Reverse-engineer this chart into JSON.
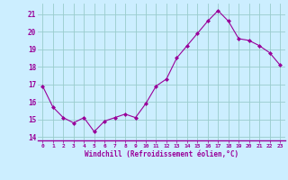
{
  "x": [
    0,
    1,
    2,
    3,
    4,
    5,
    6,
    7,
    8,
    9,
    10,
    11,
    12,
    13,
    14,
    15,
    16,
    17,
    18,
    19,
    20,
    21,
    22,
    23
  ],
  "y": [
    16.9,
    15.7,
    15.1,
    14.8,
    15.1,
    14.3,
    14.9,
    15.1,
    15.3,
    15.1,
    15.9,
    16.9,
    17.3,
    18.5,
    19.2,
    19.9,
    20.6,
    21.2,
    20.6,
    19.6,
    19.5,
    19.2,
    18.8,
    18.1
  ],
  "line_color": "#990099",
  "marker": "D",
  "marker_size": 2,
  "bg_color": "#cceeff",
  "grid_color": "#99cccc",
  "xlabel": "Windchill (Refroidissement éolien,°C)",
  "xlabel_color": "#990099",
  "tick_color": "#990099",
  "ylim": [
    13.8,
    21.6
  ],
  "xlim": [
    -0.5,
    23.5
  ],
  "yticks": [
    14,
    15,
    16,
    17,
    18,
    19,
    20,
    21
  ],
  "xticks": [
    0,
    1,
    2,
    3,
    4,
    5,
    6,
    7,
    8,
    9,
    10,
    11,
    12,
    13,
    14,
    15,
    16,
    17,
    18,
    19,
    20,
    21,
    22,
    23
  ],
  "xtick_labels": [
    "0",
    "1",
    "2",
    "3",
    "4",
    "5",
    "6",
    "7",
    "8",
    "9",
    "10",
    "11",
    "12",
    "13",
    "14",
    "15",
    "16",
    "17",
    "18",
    "19",
    "20",
    "21",
    "22",
    "23"
  ]
}
